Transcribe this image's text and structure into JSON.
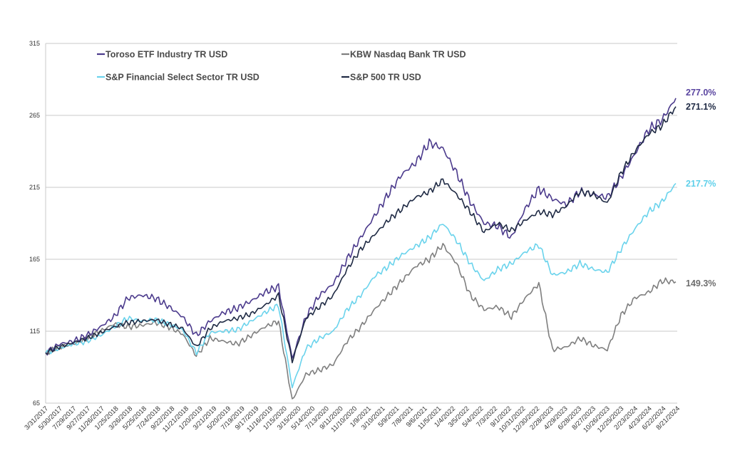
{
  "chart_data": {
    "type": "line",
    "title": "",
    "xlabel": "",
    "ylabel": "",
    "ylim": [
      65,
      315
    ],
    "yticks": [
      65,
      115,
      165,
      215,
      265,
      315
    ],
    "grid": "horizontal",
    "legend_placement": "top-left",
    "x_tick_labels": [
      "3/31/2017",
      "5/30/2017",
      "7/29/2017",
      "9/27/2017",
      "11/26/2017",
      "1/25/2018",
      "3/26/2018",
      "5/25/2018",
      "7/24/2018",
      "9/22/2018",
      "11/21/2018",
      "1/20/2019",
      "3/21/2019",
      "5/20/2019",
      "7/19/2019",
      "9/17/2019",
      "11/16/2019",
      "1/15/2020",
      "3/15/2020",
      "5/14/2020",
      "7/13/2020",
      "9/11/2020",
      "11/10/2020",
      "1/9/2021",
      "3/10/2021",
      "5/9/2021",
      "7/8/2021",
      "9/6/2021",
      "11/5/2021",
      "1/4/2022",
      "3/5/2022",
      "5/4/2022",
      "7/3/2022",
      "9/1/2022",
      "10/31/2022",
      "12/30/2022",
      "2/28/2023",
      "4/29/2023",
      "6/28/2023",
      "8/27/2023",
      "10/26/2023",
      "12/25/2023",
      "2/23/2024",
      "4/23/2024",
      "6/22/2024",
      "8/21/2024"
    ],
    "series": [
      {
        "name": "Toroso ETF Industry TR USD",
        "color": "#4b3a8c",
        "end_label": "277.0%",
        "values": [
          100,
          106,
          108,
          112,
          118,
          125,
          138,
          140,
          138,
          132,
          125,
          112,
          122,
          128,
          131,
          136,
          142,
          146,
          96,
          125,
          140,
          148,
          165,
          180,
          195,
          210,
          224,
          232,
          246,
          242,
          225,
          205,
          190,
          188,
          180,
          200,
          214,
          207,
          203,
          212,
          210,
          208,
          222,
          238,
          255,
          262,
          277
        ]
      },
      {
        "name": "KBW Nasdaq Bank TR USD",
        "color": "#7f7f7f",
        "end_label": "149.3%",
        "values": [
          100,
          104,
          106,
          110,
          115,
          120,
          118,
          119,
          121,
          118,
          113,
          98,
          110,
          108,
          106,
          112,
          118,
          122,
          67,
          85,
          88,
          92,
          108,
          118,
          130,
          140,
          150,
          160,
          165,
          175,
          162,
          140,
          130,
          132,
          125,
          138,
          148,
          102,
          104,
          110,
          105,
          102,
          126,
          138,
          142,
          150,
          149.3
        ]
      },
      {
        "name": "S&P Financial Select Sector TR USD",
        "color": "#6ad3ec",
        "end_label": "217.7%",
        "values": [
          100,
          103,
          106,
          108,
          112,
          118,
          124,
          122,
          123,
          120,
          116,
          100,
          114,
          115,
          116,
          122,
          128,
          133,
          76,
          103,
          110,
          115,
          130,
          140,
          153,
          160,
          168,
          174,
          180,
          190,
          178,
          162,
          150,
          158,
          162,
          170,
          175,
          154,
          156,
          162,
          158,
          156,
          172,
          186,
          198,
          205,
          217.7
        ]
      },
      {
        "name": "S&P 500 TR USD",
        "color": "#1f2a44",
        "end_label": "271.1%",
        "values": [
          100,
          104,
          107,
          110,
          114,
          118,
          121,
          122,
          123,
          120,
          117,
          104,
          117,
          122,
          124,
          127,
          133,
          140,
          94,
          124,
          132,
          140,
          158,
          172,
          182,
          192,
          200,
          208,
          212,
          220,
          210,
          198,
          184,
          190,
          185,
          192,
          198,
          196,
          202,
          212,
          210,
          204,
          225,
          240,
          252,
          258,
          271.1
        ]
      }
    ]
  }
}
